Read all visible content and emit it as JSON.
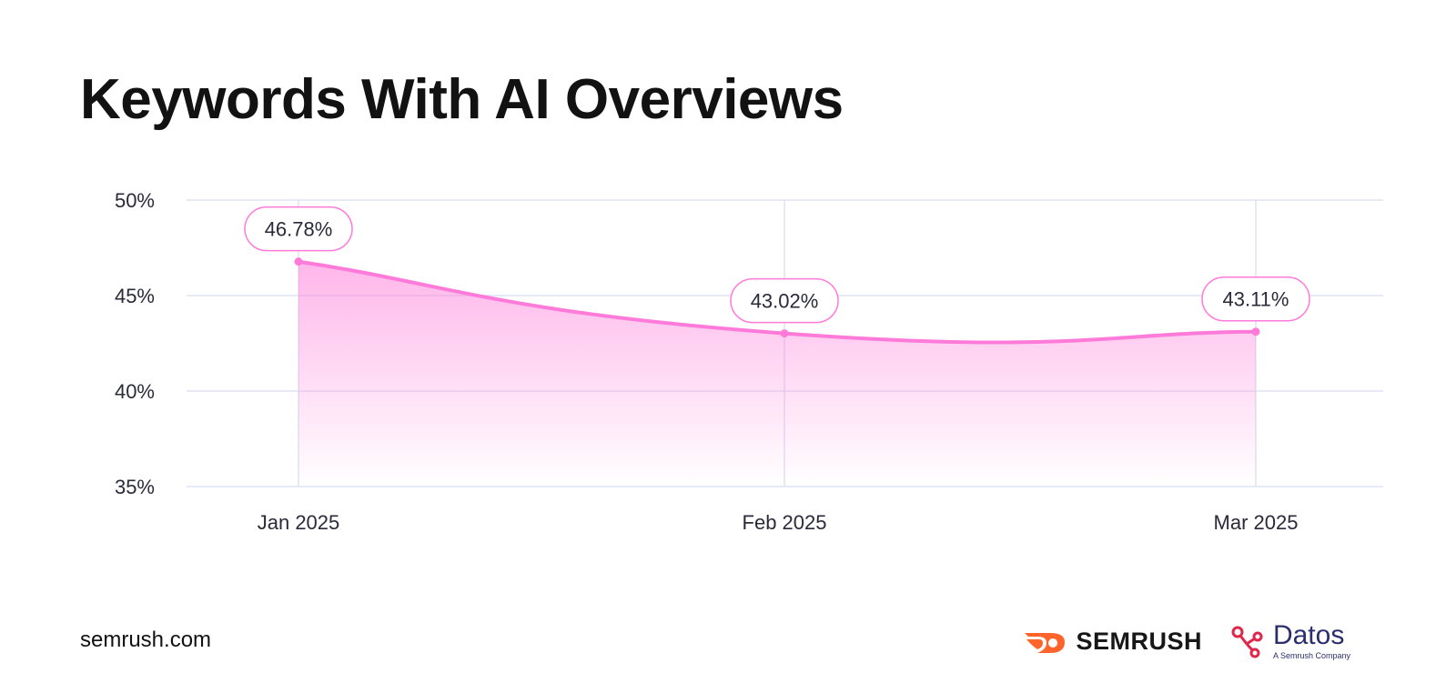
{
  "title": "Keywords With AI Overviews",
  "footer": {
    "site": "semrush.com"
  },
  "logos": {
    "semrush": {
      "word": "SEMRUSH",
      "icon": "semrush-fire-icon",
      "color": "#ff642d"
    },
    "datos": {
      "word": "Datos",
      "subtitle": "A Semrush Company",
      "icon": "datos-nodes-icon",
      "color": "#e0264a"
    }
  },
  "colors": {
    "line": "#ff7ad9",
    "grid": "#dde3f3",
    "label_border": "#ff7ad9",
    "text": "#2a2a3a"
  },
  "chart_data": {
    "type": "area",
    "categories": [
      "Jan 2025",
      "Feb 2025",
      "Mar 2025"
    ],
    "values": [
      46.78,
      43.02,
      43.11
    ],
    "data_labels": [
      "46.78%",
      "43.02%",
      "43.11%"
    ],
    "y_ticks": [
      "50%",
      "45%",
      "40%",
      "35%"
    ],
    "y_tick_values": [
      50,
      45,
      40,
      35
    ],
    "ylim": [
      35,
      50
    ],
    "grid": true,
    "xlabel": "",
    "ylabel": ""
  }
}
